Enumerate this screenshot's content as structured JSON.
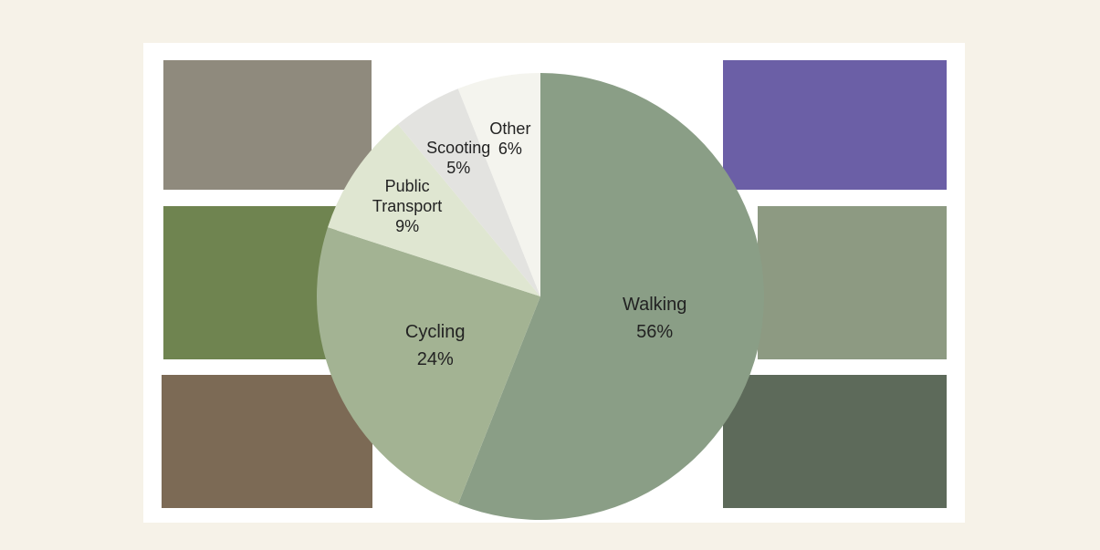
{
  "chart_data": {
    "type": "pie",
    "categories": [
      "Walking",
      "Cycling",
      "Public Transport",
      "Scooting",
      "Other"
    ],
    "values": [
      56,
      24,
      9,
      5,
      6
    ],
    "value_labels": [
      "56%",
      "24%",
      "9%",
      "5%",
      "6%"
    ],
    "colors": [
      "#8a9e86",
      "#a3b393",
      "#dfe6d1",
      "#e3e3e0",
      "#f4f4ee"
    ]
  }
}
